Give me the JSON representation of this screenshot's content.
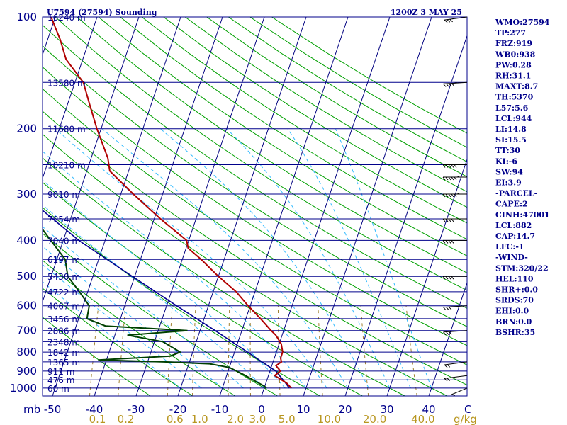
{
  "chart_data": {
    "type": "skew-t",
    "title": "U7594 (27594) Sounding",
    "datetime": "1200Z  3 MAY 25",
    "pressure_levels": [
      100,
      200,
      300,
      400,
      500,
      600,
      700,
      800,
      900,
      1000
    ],
    "pressure_tick_labels": [
      "100",
      "200",
      "300",
      "400",
      "500",
      "600",
      "700",
      "800",
      "900",
      "1000"
    ],
    "height_labels": [
      {
        "p": 100,
        "text": "16240 m"
      },
      {
        "p": 150,
        "text": "13580 m"
      },
      {
        "p": 200,
        "text": "11680 m"
      },
      {
        "p": 250,
        "text": "10210 m"
      },
      {
        "p": 300,
        "text": "9010 m"
      },
      {
        "p": 350,
        "text": "7954 m"
      },
      {
        "p": 400,
        "text": "7040 m"
      },
      {
        "p": 450,
        "text": "6197 m"
      },
      {
        "p": 500,
        "text": "5430 m"
      },
      {
        "p": 550,
        "text": "4722 m"
      },
      {
        "p": 600,
        "text": "4067 m"
      },
      {
        "p": 650,
        "text": "3456 m"
      },
      {
        "p": 700,
        "text": "2886 m"
      },
      {
        "p": 750,
        "text": "2348 m"
      },
      {
        "p": 800,
        "text": "1842 m"
      },
      {
        "p": 850,
        "text": "1365 m"
      },
      {
        "p": 900,
        "text": "911 m"
      },
      {
        "p": 950,
        "text": "476 m"
      },
      {
        "p": 1000,
        "text": "60 m"
      }
    ],
    "temperature_ticks": [
      -50,
      -40,
      -30,
      -20,
      -10,
      0,
      10,
      20,
      30,
      40
    ],
    "temperature_tick_labels": [
      "-50",
      "-40",
      "-30",
      "-20",
      "-10",
      "0",
      "10",
      "20",
      "30",
      "40"
    ],
    "mb_label": "mb",
    "c_label": "C",
    "mixing_ratio_labels": [
      "0.1",
      "0.2",
      "0.6",
      "1.0",
      "2.0",
      "3.0",
      "5.0",
      "10.0",
      "20.0",
      "40.0"
    ],
    "mixing_ratio_values": [
      0.1,
      0.2,
      0.6,
      1.0,
      2.0,
      3.0,
      5.0,
      10.0,
      20.0,
      40.0
    ],
    "mixing_ratio_unit": "g/kg",
    "temperature_profile": [
      {
        "p": 1000,
        "t": 6.5
      },
      {
        "p": 970,
        "t": 5.0
      },
      {
        "p": 925,
        "t": 1.5
      },
      {
        "p": 900,
        "t": 2.5
      },
      {
        "p": 870,
        "t": 1.0
      },
      {
        "p": 850,
        "t": 2.0
      },
      {
        "p": 830,
        "t": 1.5
      },
      {
        "p": 800,
        "t": 1.5
      },
      {
        "p": 760,
        "t": 0.5
      },
      {
        "p": 720,
        "t": -1.5
      },
      {
        "p": 700,
        "t": -3.0
      },
      {
        "p": 650,
        "t": -6.5
      },
      {
        "p": 600,
        "t": -10.5
      },
      {
        "p": 550,
        "t": -14.5
      },
      {
        "p": 500,
        "t": -20.0
      },
      {
        "p": 450,
        "t": -25.5
      },
      {
        "p": 420,
        "t": -29.5
      },
      {
        "p": 400,
        "t": -30.5
      },
      {
        "p": 350,
        "t": -38.5
      },
      {
        "p": 300,
        "t": -47.0
      },
      {
        "p": 260,
        "t": -54.5
      },
      {
        "p": 240,
        "t": -56.0
      },
      {
        "p": 200,
        "t": -61.0
      },
      {
        "p": 170,
        "t": -65.0
      },
      {
        "p": 150,
        "t": -68.0
      },
      {
        "p": 130,
        "t": -74.0
      },
      {
        "p": 115,
        "t": -77.0
      },
      {
        "p": 100,
        "t": -81.0
      }
    ],
    "dewpoint_profile": [
      {
        "p": 1000,
        "t": 0.5
      },
      {
        "p": 990,
        "t": 0.0
      },
      {
        "p": 960,
        "t": -2.5
      },
      {
        "p": 920,
        "t": -6.0
      },
      {
        "p": 880,
        "t": -10.0
      },
      {
        "p": 860,
        "t": -15.0
      },
      {
        "p": 850,
        "t": -26.0
      },
      {
        "p": 840,
        "t": -42.0
      },
      {
        "p": 820,
        "t": -25.0
      },
      {
        "p": 800,
        "t": -23.0
      },
      {
        "p": 750,
        "t": -28.0
      },
      {
        "p": 720,
        "t": -37.0
      },
      {
        "p": 700,
        "t": -23.0
      },
      {
        "p": 680,
        "t": -43.0
      },
      {
        "p": 650,
        "t": -48.0
      },
      {
        "p": 600,
        "t": -48.5
      },
      {
        "p": 550,
        "t": -52.0
      },
      {
        "p": 500,
        "t": -56.0
      },
      {
        "p": 450,
        "t": -58.0
      },
      {
        "p": 400,
        "t": -63.0
      },
      {
        "p": 300,
        "t": -75.0
      },
      {
        "p": 260,
        "t": -81.0
      },
      {
        "p": 200,
        "t": -80.0
      },
      {
        "p": 150,
        "t": -81.0
      },
      {
        "p": 100,
        "t": -85.0
      }
    ],
    "parcel_profile": [
      {
        "p": 1000,
        "t": 6.0
      },
      {
        "p": 960,
        "t": 4.3
      },
      {
        "p": 900,
        "t": 1.4
      },
      {
        "p": 800,
        "t": -6.9
      },
      {
        "p": 700,
        "t": -16.4
      },
      {
        "p": 600,
        "t": -27.6
      },
      {
        "p": 500,
        "t": -40.6
      },
      {
        "p": 400,
        "t": -56.3
      },
      {
        "p": 300,
        "t": -73.4
      },
      {
        "p": 200,
        "t": -92.0
      },
      {
        "p": 150,
        "t": -102.0
      },
      {
        "p": 120,
        "t": -109.0
      }
    ],
    "wind_barbs": [
      {
        "p": 1000,
        "dir": 320,
        "spd": 10
      },
      {
        "p": 925,
        "dir": 290,
        "spd": 20
      },
      {
        "p": 850,
        "dir": 290,
        "spd": 20
      },
      {
        "p": 700,
        "dir": 280,
        "spd": 25
      },
      {
        "p": 600,
        "dir": 280,
        "spd": 30
      },
      {
        "p": 500,
        "dir": 270,
        "spd": 35
      },
      {
        "p": 400,
        "dir": 270,
        "spd": 40
      },
      {
        "p": 350,
        "dir": 270,
        "spd": 40
      },
      {
        "p": 300,
        "dir": 270,
        "spd": 45
      },
      {
        "p": 270,
        "dir": 270,
        "spd": 45
      },
      {
        "p": 250,
        "dir": 270,
        "spd": 45
      },
      {
        "p": 150,
        "dir": 280,
        "spd": 35
      },
      {
        "p": 100,
        "dir": 290,
        "spd": 25
      }
    ]
  },
  "indices": [
    "WMO:27594",
    "TP:277",
    "FRZ:919",
    "WB0:938",
    "PW:0.28",
    "RH:31.1",
    "MAXT:8.7",
    "TH:5370",
    "L57:5.6",
    "LCL:944",
    "LI:14.8",
    "SI:15.5",
    "TT:30",
    "KI:-6",
    "SW:94",
    "EI:3.9",
    "-PARCEL-",
    "CAPE:2",
    "CINH:47001",
    "LCL:882",
    "CAP:14.7",
    "LFC:-1",
    "-WIND-",
    "STM:320/22",
    "HEL:110",
    "SHR+:0.0",
    "SRDS:70",
    "EHI:0.0",
    "BRN:0.0",
    "BSHR:35"
  ],
  "colors": {
    "frame": "#00008b",
    "isobar": "#00008b",
    "isotherm": "#000080",
    "dry_adiabat": "#00a000",
    "moist_adiabat": "#33bbff",
    "mixing_ratio": "#a08030",
    "temperature": "#b00000",
    "dewpoint": "#004000",
    "parcel": "#000090",
    "wind_barb": "#000000",
    "mixing_label": "#b8961f"
  }
}
